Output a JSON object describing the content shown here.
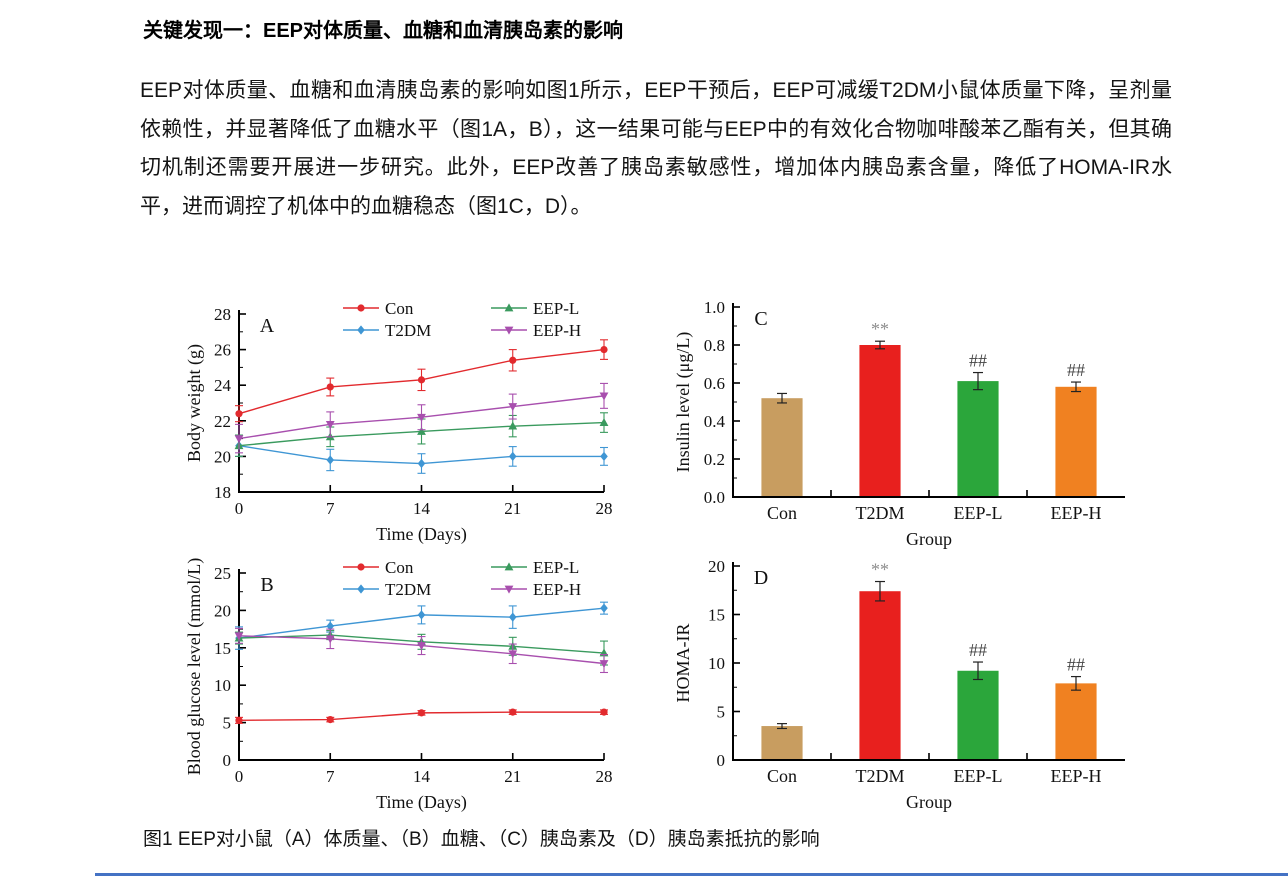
{
  "page": {
    "heading": "关键发现一：EEP对体质量、血糖和血清胰岛素的影响",
    "paragraph": "EEP对体质量、血糖和血清胰岛素的影响如图1所示，EEP干预后，EEP可减缓T2DM小鼠体质量下降，呈剂量依赖性，并显著降低了血糖水平（图1A，B），这一结果可能与EEP中的有效化合物咖啡酸苯乙酯有关，但其确切机制还需要开展进一步研究。此外，EEP改善了胰岛素敏感性，增加体内胰岛素含量，降低了HOMA-IR水平，进而调控了机体中的血糖稳态（图1C，D）。",
    "figure_caption": "图1  EEP对小鼠（A）体质量、（B）血糖、（C）胰岛素及（D）胰岛素抵抗的影响",
    "bottom_rule_color": "#4472c4"
  },
  "chart_data": [
    {
      "id": "panelA",
      "type": "line",
      "panel": "A",
      "title": "",
      "xlabel": "Time (Days)",
      "ylabel": "Body weight (g)",
      "x": [
        0,
        7,
        14,
        21,
        28
      ],
      "xticks": [
        0,
        7,
        14,
        21,
        28
      ],
      "xlim": [
        0,
        28
      ],
      "ylim": [
        18,
        28
      ],
      "yticks": [
        18,
        20,
        22,
        24,
        26,
        28
      ],
      "ytick_labels": [
        "18",
        "20",
        "22",
        "24",
        "26",
        "28"
      ],
      "legend_position": "top-inside-two-columns",
      "grid": false,
      "series": [
        {
          "name": "Con",
          "color": "#e22a2e",
          "marker": "circle",
          "values": [
            22.4,
            23.9,
            24.3,
            25.4,
            26.0
          ],
          "errors": [
            0.45,
            0.5,
            0.6,
            0.6,
            0.55
          ]
        },
        {
          "name": "T2DM",
          "color": "#3f96d4",
          "marker": "diamond",
          "values": [
            20.6,
            19.8,
            19.6,
            20.0,
            20.0
          ],
          "errors": [
            0.6,
            0.6,
            0.55,
            0.55,
            0.5
          ]
        },
        {
          "name": "EEP-L",
          "color": "#3a9a5e",
          "marker": "triangle-up",
          "values": [
            20.6,
            21.1,
            21.4,
            21.7,
            21.9
          ],
          "errors": [
            0.6,
            0.55,
            0.7,
            0.6,
            0.55
          ]
        },
        {
          "name": "EEP-H",
          "color": "#a84fae",
          "marker": "triangle-down",
          "values": [
            21.0,
            21.8,
            22.2,
            22.8,
            23.4
          ],
          "errors": [
            0.8,
            0.7,
            0.7,
            0.7,
            0.7
          ]
        }
      ]
    },
    {
      "id": "panelB",
      "type": "line",
      "panel": "B",
      "title": "",
      "xlabel": "Time (Days)",
      "ylabel": "Blood glucose level (mmol/L)",
      "x": [
        0,
        7,
        14,
        21,
        28
      ],
      "xticks": [
        0,
        7,
        14,
        21,
        28
      ],
      "xlim": [
        0,
        28
      ],
      "ylim": [
        0,
        25
      ],
      "yticks": [
        0,
        5,
        10,
        15,
        20,
        25
      ],
      "ytick_labels": [
        "0",
        "5",
        "10",
        "15",
        "20",
        "25"
      ],
      "legend_position": "top-inside-two-columns",
      "grid": false,
      "series": [
        {
          "name": "Con",
          "color": "#e22a2e",
          "marker": "circle",
          "values": [
            5.3,
            5.4,
            6.3,
            6.4,
            6.4
          ],
          "errors": [
            0.4,
            0.3,
            0.3,
            0.3,
            0.3
          ]
        },
        {
          "name": "T2DM",
          "color": "#3f96d4",
          "marker": "diamond",
          "values": [
            16.3,
            17.9,
            19.4,
            19.1,
            20.3
          ],
          "errors": [
            1.5,
            0.8,
            1.2,
            1.5,
            0.8
          ]
        },
        {
          "name": "EEP-L",
          "color": "#3a9a5e",
          "marker": "triangle-up",
          "values": [
            16.3,
            16.7,
            15.8,
            15.2,
            14.3
          ],
          "errors": [
            0.8,
            0.6,
            1.0,
            1.2,
            1.6
          ]
        },
        {
          "name": "EEP-H",
          "color": "#a84fae",
          "marker": "triangle-down",
          "values": [
            16.6,
            16.2,
            15.3,
            14.2,
            12.9
          ],
          "errors": [
            1.0,
            1.3,
            1.2,
            1.3,
            1.2
          ]
        }
      ]
    },
    {
      "id": "panelC",
      "type": "bar",
      "panel": "C",
      "title": "",
      "xlabel": "Group",
      "ylabel": "Insulin level (μg/L)",
      "categories": [
        "Con",
        "T2DM",
        "EEP-L",
        "EEP-H"
      ],
      "values": [
        0.52,
        0.8,
        0.61,
        0.58
      ],
      "errors": [
        0.025,
        0.02,
        0.045,
        0.025
      ],
      "colors": [
        "#c89d60",
        "#e8201e",
        "#2ba63b",
        "#f08121"
      ],
      "annotations": [
        "",
        "**",
        "##",
        "##"
      ],
      "annotation_colors": {
        "**": "#8e8e8e",
        "##": "#454545"
      },
      "ylim": [
        0,
        1.0
      ],
      "yticks": [
        0,
        0.2,
        0.4,
        0.6,
        0.8,
        1.0
      ],
      "ytick_labels": [
        "0.0",
        "0.2",
        "0.4",
        "0.6",
        "0.8",
        "1.0"
      ],
      "grid": false
    },
    {
      "id": "panelD",
      "type": "bar",
      "panel": "D",
      "title": "",
      "xlabel": "Group",
      "ylabel": "HOMA-IR",
      "categories": [
        "Con",
        "T2DM",
        "EEP-L",
        "EEP-H"
      ],
      "values": [
        3.5,
        17.4,
        9.2,
        7.9
      ],
      "errors": [
        0.25,
        1.0,
        0.9,
        0.7
      ],
      "colors": [
        "#c89d60",
        "#e8201e",
        "#2ba63b",
        "#f08121"
      ],
      "annotations": [
        "",
        "**",
        "##",
        "##"
      ],
      "annotation_colors": {
        "**": "#8e8e8e",
        "##": "#454545"
      },
      "ylim": [
        0,
        20
      ],
      "yticks": [
        0,
        5,
        10,
        15,
        20
      ],
      "ytick_labels": [
        "0",
        "5",
        "10",
        "15",
        "20"
      ],
      "grid": false
    }
  ]
}
